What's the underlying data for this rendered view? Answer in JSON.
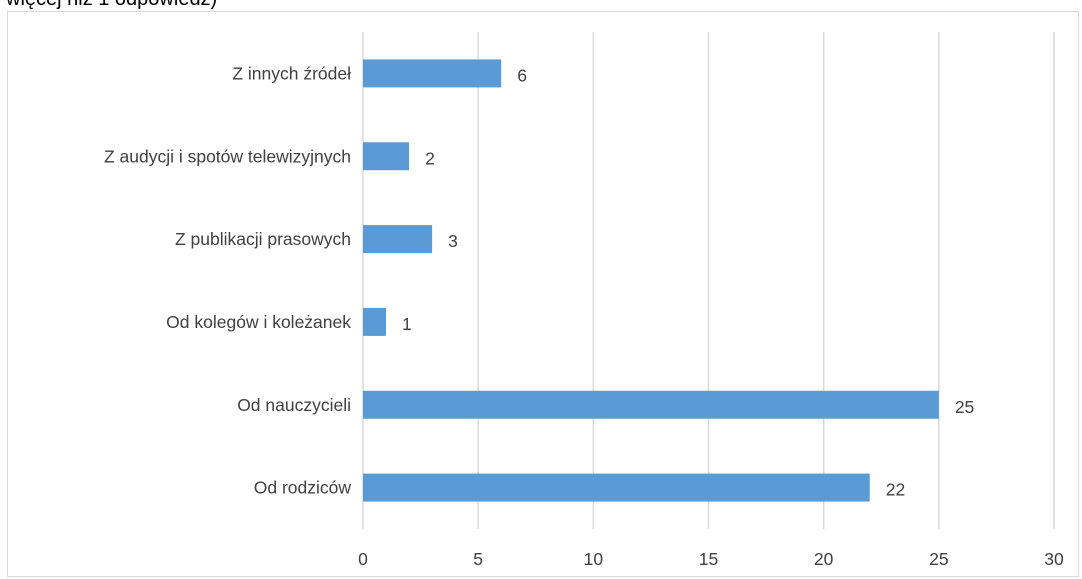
{
  "page": {
    "cut_title": "więcej niż 1 odpowiedź)"
  },
  "chart_data": {
    "type": "bar",
    "orientation": "horizontal",
    "categories": [
      "Z innych źródeł",
      "Z audycji i spotów telewizyjnych",
      "Z publikacji prasowych",
      "Od kolegów i koleżanek",
      "Od nauczycieli",
      "Od rodziców"
    ],
    "values": [
      6,
      2,
      3,
      1,
      25,
      22
    ],
    "xlim": [
      0,
      30
    ],
    "xticks": [
      0,
      5,
      10,
      15,
      20,
      25,
      30
    ],
    "data_labels": true,
    "grid": "vertical",
    "bar_color": "#5b9bd5",
    "grid_color": "#d9d9d9",
    "text_color": "#404040"
  }
}
